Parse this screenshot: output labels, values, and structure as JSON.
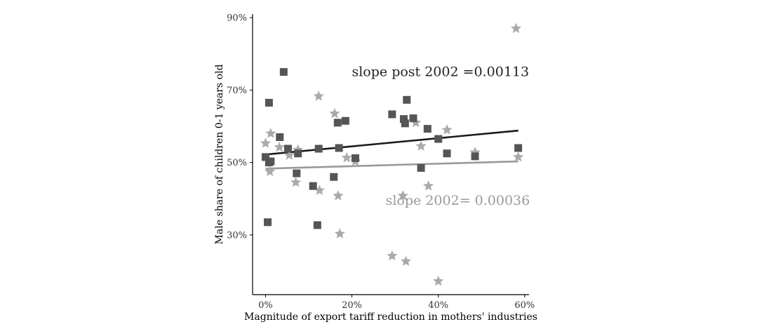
{
  "chart_data": {
    "type": "scatter",
    "xlabel": "Magnitude of export tariff reduction in mothers' industries",
    "ylabel": "Male share of children 0-1 years old",
    "xlim": [
      -0.03,
      0.61
    ],
    "ylim": [
      0.135,
      0.91
    ],
    "xticks": [
      0,
      0.2,
      0.4,
      0.6
    ],
    "xtick_labels": [
      "0%",
      "20%",
      "40%",
      "60%"
    ],
    "yticks": [
      0.3,
      0.5,
      0.7,
      0.9
    ],
    "ytick_labels": [
      "30%",
      "50%",
      "70%",
      "90%"
    ],
    "grid": false,
    "colors": {
      "post2002": "#555555",
      "pre2002": "#aaaaaa",
      "post_line": "#1a1a1a",
      "pre_line": "#999999"
    },
    "series": [
      {
        "marker": "square",
        "points": [
          [
            0.0,
            0.515
          ],
          [
            0.005,
            0.335
          ],
          [
            0.008,
            0.665
          ],
          [
            0.008,
            0.5
          ],
          [
            0.012,
            0.503
          ],
          [
            0.033,
            0.57
          ],
          [
            0.042,
            0.75
          ],
          [
            0.052,
            0.538
          ],
          [
            0.072,
            0.47
          ],
          [
            0.075,
            0.525
          ],
          [
            0.11,
            0.435
          ],
          [
            0.12,
            0.327
          ],
          [
            0.123,
            0.538
          ],
          [
            0.158,
            0.46
          ],
          [
            0.167,
            0.61
          ],
          [
            0.17,
            0.54
          ],
          [
            0.185,
            0.615
          ],
          [
            0.208,
            0.512
          ],
          [
            0.293,
            0.633
          ],
          [
            0.32,
            0.62
          ],
          [
            0.323,
            0.608
          ],
          [
            0.327,
            0.673
          ],
          [
            0.342,
            0.622
          ],
          [
            0.36,
            0.485
          ],
          [
            0.375,
            0.593
          ],
          [
            0.4,
            0.565
          ],
          [
            0.42,
            0.525
          ],
          [
            0.485,
            0.517
          ],
          [
            0.585,
            0.54
          ]
        ]
      },
      {
        "marker": "star",
        "points": [
          [
            0.0,
            0.553
          ],
          [
            0.01,
            0.475
          ],
          [
            0.012,
            0.58
          ],
          [
            0.032,
            0.542
          ],
          [
            0.055,
            0.52
          ],
          [
            0.07,
            0.445
          ],
          [
            0.075,
            0.535
          ],
          [
            0.123,
            0.683
          ],
          [
            0.125,
            0.423
          ],
          [
            0.16,
            0.635
          ],
          [
            0.168,
            0.408
          ],
          [
            0.172,
            0.303
          ],
          [
            0.188,
            0.513
          ],
          [
            0.208,
            0.503
          ],
          [
            0.293,
            0.242
          ],
          [
            0.318,
            0.408
          ],
          [
            0.325,
            0.227
          ],
          [
            0.348,
            0.61
          ],
          [
            0.36,
            0.545
          ],
          [
            0.377,
            0.435
          ],
          [
            0.4,
            0.172
          ],
          [
            0.42,
            0.59
          ],
          [
            0.485,
            0.528
          ],
          [
            0.58,
            0.87
          ],
          [
            0.585,
            0.515
          ]
        ]
      }
    ],
    "fit_lines": [
      {
        "x": [
          0.0,
          0.585
        ],
        "y": [
          0.522,
          0.588
        ]
      },
      {
        "x": [
          0.0,
          0.585
        ],
        "y": [
          0.483,
          0.503
        ]
      }
    ],
    "annotations": [
      {
        "text": "slope post 2002 =0.00113",
        "x": 0.405,
        "y": 0.75
      },
      {
        "text": "slope 2002= 0.00036",
        "x": 0.445,
        "y": 0.395
      }
    ]
  }
}
